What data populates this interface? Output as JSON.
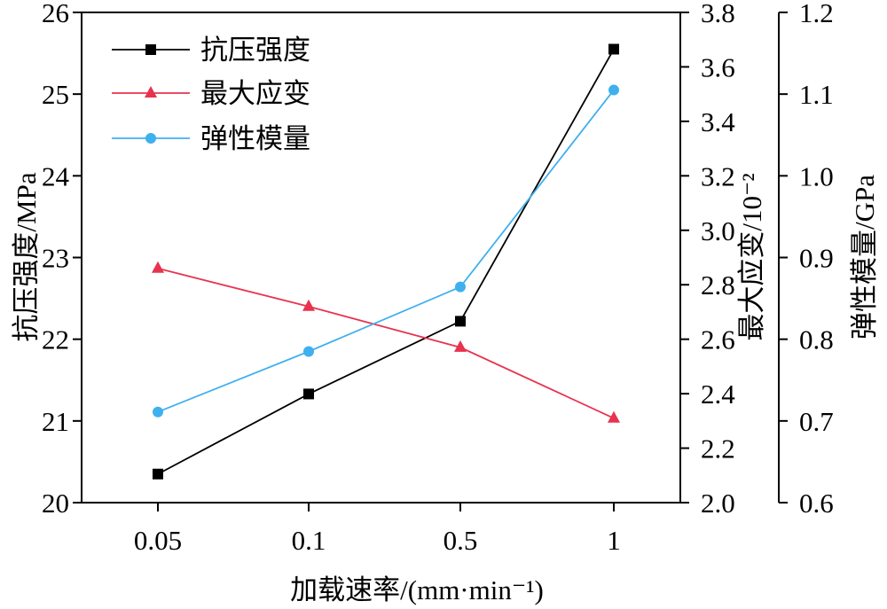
{
  "chart_data": {
    "type": "line",
    "categories": [
      "0.05",
      "0.1",
      "0.5",
      "1"
    ],
    "xlabel": "加载速率/(mm·min⁻¹)",
    "axes": {
      "left": {
        "label": "抗压强度/MPa",
        "min": 20,
        "max": 26,
        "ticks": [
          "20",
          "21",
          "22",
          "23",
          "24",
          "25",
          "26"
        ]
      },
      "right1": {
        "label": "最大应变/10⁻²",
        "min": 2.0,
        "max": 3.8,
        "ticks": [
          "2.0",
          "2.2",
          "2.4",
          "2.6",
          "2.8",
          "3.0",
          "3.2",
          "3.4",
          "3.6",
          "3.8"
        ]
      },
      "right2": {
        "label": "弹性模量/GPa",
        "min": 0.6,
        "max": 1.2,
        "ticks": [
          "0.6",
          "0.7",
          "0.8",
          "0.9",
          "1.0",
          "1.1",
          "1.2"
        ]
      }
    },
    "series": [
      {
        "name": "抗压强度",
        "axis": "left",
        "color": "#000000",
        "marker": "square",
        "values": [
          20.35,
          21.33,
          22.22,
          25.55
        ]
      },
      {
        "name": "最大应变",
        "axis": "right1",
        "color": "#e8334f",
        "marker": "triangle",
        "values": [
          2.86,
          2.72,
          2.57,
          2.31
        ]
      },
      {
        "name": "弹性模量",
        "axis": "right2",
        "color": "#3fb0ee",
        "marker": "circle",
        "values": [
          0.711,
          0.785,
          0.864,
          1.105
        ]
      }
    ],
    "legend": "top-left",
    "grid": false
  }
}
